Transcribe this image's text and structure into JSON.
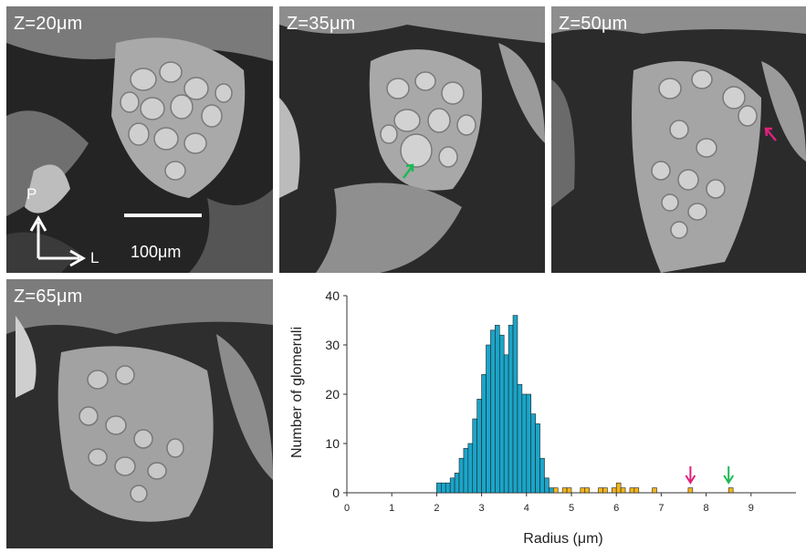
{
  "panels": [
    {
      "label": "Z=20μm",
      "axes": {
        "up": "P",
        "right": "L"
      },
      "scale_bar": "100μm"
    },
    {
      "label": "Z=35μm",
      "arrow_color": "#1db954"
    },
    {
      "label": "Z=50μm",
      "arrow_color": "#e0207a"
    },
    {
      "label": "Z=65μm"
    }
  ],
  "chart_data": {
    "type": "bar",
    "xlabel": "Radius (μm)",
    "ylabel": "Number of glomeruli",
    "xlim": [
      0,
      10
    ],
    "ylim": [
      0,
      40
    ],
    "xticks": [
      "0",
      "1",
      "2",
      "3",
      "4",
      "5",
      "6",
      "7",
      "8",
      "9"
    ],
    "yticks": [
      "0",
      "10",
      "20",
      "30",
      "40"
    ],
    "bin_width": 0.1,
    "series": [
      {
        "color": "#1aa5c9",
        "x": [
          2.0,
          2.1,
          2.2,
          2.3,
          2.4,
          2.5,
          2.6,
          2.7,
          2.8,
          2.9,
          3.0,
          3.1,
          3.2,
          3.3,
          3.4,
          3.5,
          3.6,
          3.7,
          3.8,
          3.9,
          4.0,
          4.1,
          4.2,
          4.3,
          4.4,
          4.5
        ],
        "values": [
          2,
          2,
          2,
          3,
          4,
          7,
          9,
          10,
          15,
          19,
          24,
          30,
          33,
          34,
          32,
          28,
          34,
          36,
          22,
          20,
          20,
          16,
          14,
          7,
          3,
          1
        ]
      },
      {
        "color": "#f2b51d",
        "x": [
          4.6,
          4.8,
          4.9,
          5.2,
          5.3,
          5.6,
          5.7,
          5.9,
          6.0,
          6.1,
          6.3,
          6.4,
          6.8,
          7.6,
          8.5
        ],
        "values": [
          1,
          1,
          1,
          1,
          1,
          1,
          1,
          1,
          2,
          1,
          1,
          1,
          1,
          1,
          1
        ]
      }
    ],
    "annotations": [
      {
        "type": "arrow",
        "x": 7.65,
        "color": "#e0207a"
      },
      {
        "type": "arrow",
        "x": 8.5,
        "color": "#1db954"
      }
    ]
  }
}
